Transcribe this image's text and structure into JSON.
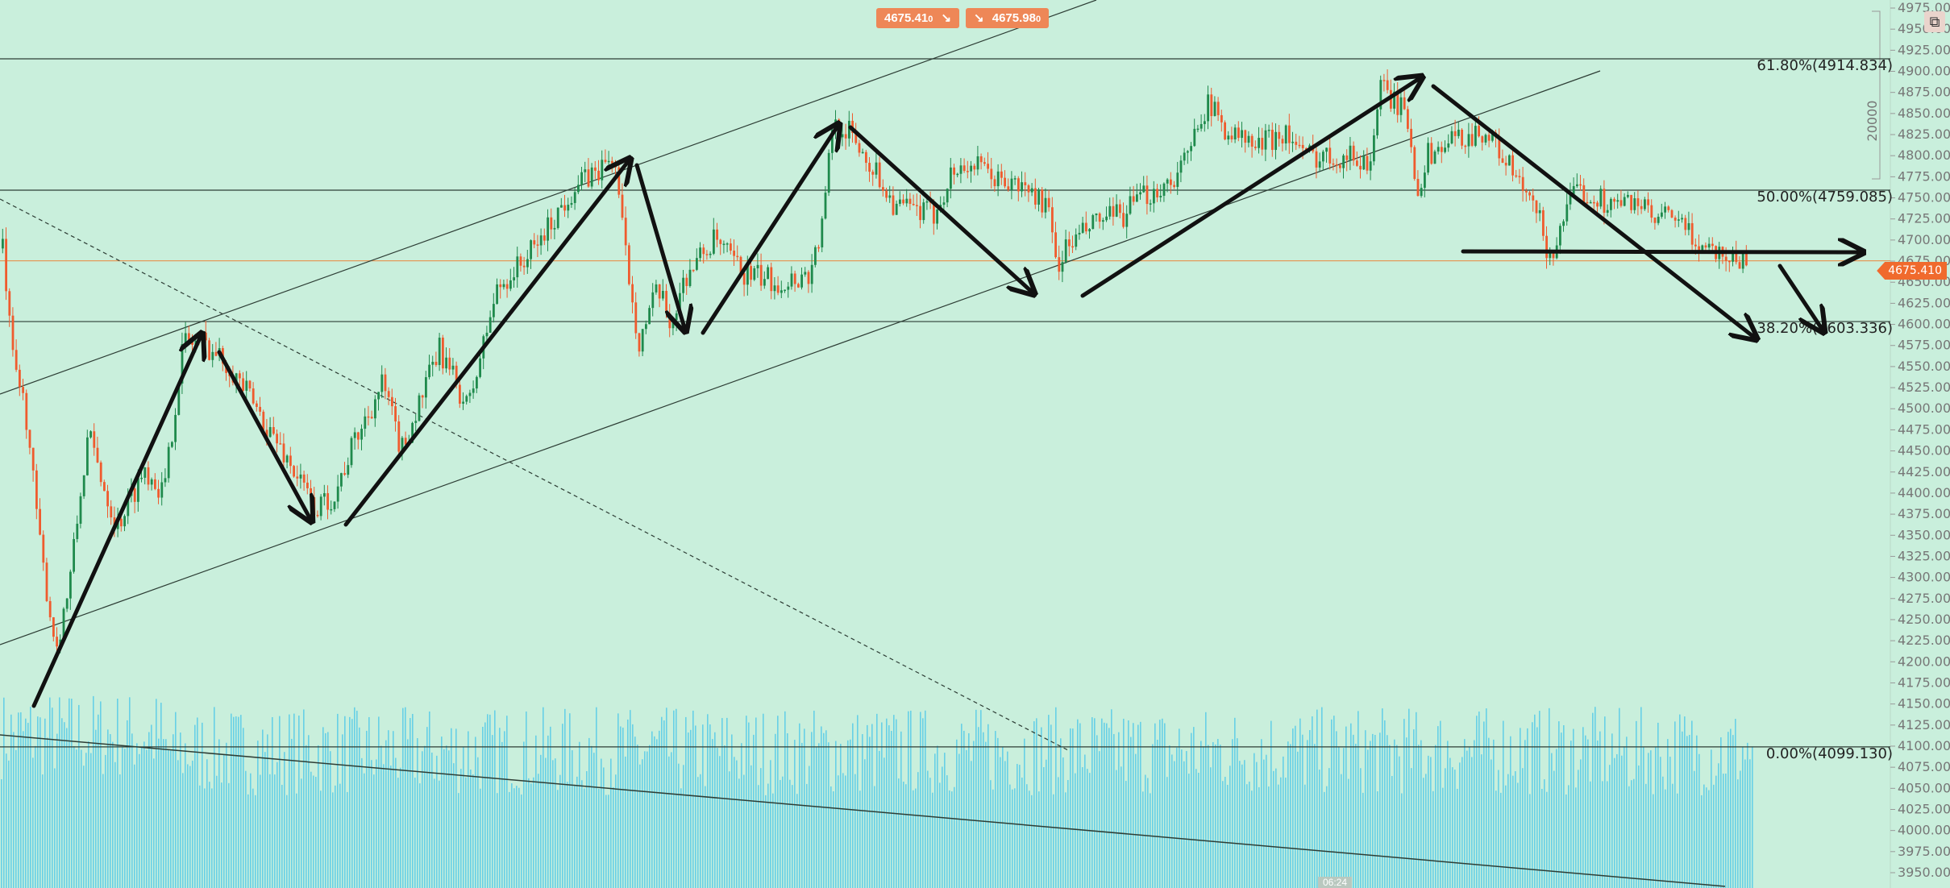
{
  "header": {
    "sell_price": "4675.41",
    "sell_suffix": "0",
    "sell_icon": "arrow-down-right-icon",
    "buy_price": "4675.98",
    "buy_suffix": "0",
    "buy_icon": "arrow-down-right-icon"
  },
  "popout_icon": "popout-icon",
  "current_price_tag": "4675.410",
  "time_tag": "06:24",
  "volume_scale_label": "20000",
  "colors": {
    "background": "#c9efdc",
    "up_candle": "#1f8a4c",
    "down_candle": "#ef5b2e",
    "volume": "#67d0e6",
    "price_line": "#e39a5a",
    "fib_line": "#2d3d35",
    "order_button": "#ee8757",
    "price_tag": "#f06a2d"
  },
  "fib_levels": [
    {
      "label": "61.80%(4914.834)",
      "price": 4914.834
    },
    {
      "label": "50.00%(4759.085)",
      "price": 4759.085
    },
    {
      "label": "38.20%(4603.336)",
      "price": 4603.336
    },
    {
      "label": "0.00%(4099.130)",
      "price": 4099.13
    }
  ],
  "current_price": 4675.41,
  "price_axis": {
    "min": 3950,
    "max": 4975,
    "step": 25,
    "labels": [
      "4975.00",
      "4950.00",
      "4925.00",
      "4900.00",
      "4875.00",
      "4850.00",
      "4825.00",
      "4800.00",
      "4775.00",
      "4750.00",
      "4725.00",
      "4700.00",
      "4675.00",
      "4650.00",
      "4625.00",
      "4600.00",
      "4575.00",
      "4550.00",
      "4525.00",
      "4500.00",
      "4475.00",
      "4450.00",
      "4425.00",
      "4400.00",
      "4375.00",
      "4350.00",
      "4325.00",
      "4300.00",
      "4275.00",
      "4250.00",
      "4225.00",
      "4200.00",
      "4175.00",
      "4150.00",
      "4125.00",
      "4100.00",
      "4075.00",
      "4050.00",
      "4025.00",
      "4000.00",
      "3975.00",
      "3950.00"
    ]
  },
  "chart_data": {
    "type": "candlestick",
    "title": "",
    "xlabel": "",
    "ylabel": "",
    "ylim": [
      3950,
      4975
    ],
    "grid": false,
    "price_path": [
      [
        0,
        4690
      ],
      [
        0.005,
        4560
      ],
      [
        0.012,
        4500
      ],
      [
        0.02,
        4330
      ],
      [
        0.028,
        4215
      ],
      [
        0.035,
        4290
      ],
      [
        0.045,
        4470
      ],
      [
        0.06,
        4360
      ],
      [
        0.075,
        4430
      ],
      [
        0.085,
        4400
      ],
      [
        0.095,
        4580
      ],
      [
        0.105,
        4580
      ],
      [
        0.12,
        4550
      ],
      [
        0.15,
        4440
      ],
      [
        0.165,
        4380
      ],
      [
        0.175,
        4400
      ],
      [
        0.185,
        4460
      ],
      [
        0.2,
        4530
      ],
      [
        0.21,
        4450
      ],
      [
        0.23,
        4570
      ],
      [
        0.245,
        4500
      ],
      [
        0.26,
        4640
      ],
      [
        0.28,
        4690
      ],
      [
        0.3,
        4760
      ],
      [
        0.315,
        4785
      ],
      [
        0.322,
        4800
      ],
      [
        0.327,
        4700
      ],
      [
        0.335,
        4580
      ],
      [
        0.345,
        4640
      ],
      [
        0.352,
        4600
      ],
      [
        0.36,
        4660
      ],
      [
        0.375,
        4700
      ],
      [
        0.39,
        4660
      ],
      [
        0.41,
        4650
      ],
      [
        0.425,
        4660
      ],
      [
        0.432,
        4720
      ],
      [
        0.437,
        4840
      ],
      [
        0.445,
        4830
      ],
      [
        0.46,
        4780
      ],
      [
        0.47,
        4740
      ],
      [
        0.49,
        4730
      ],
      [
        0.5,
        4780
      ],
      [
        0.51,
        4790
      ],
      [
        0.525,
        4770
      ],
      [
        0.54,
        4760
      ],
      [
        0.55,
        4740
      ],
      [
        0.555,
        4670
      ],
      [
        0.56,
        4690
      ],
      [
        0.575,
        4720
      ],
      [
        0.59,
        4730
      ],
      [
        0.6,
        4750
      ],
      [
        0.615,
        4770
      ],
      [
        0.625,
        4800
      ],
      [
        0.63,
        4850
      ],
      [
        0.635,
        4860
      ],
      [
        0.645,
        4830
      ],
      [
        0.66,
        4810
      ],
      [
        0.675,
        4830
      ],
      [
        0.685,
        4800
      ],
      [
        0.71,
        4800
      ],
      [
        0.72,
        4790
      ],
      [
        0.725,
        4880
      ],
      [
        0.735,
        4860
      ],
      [
        0.74,
        4840
      ],
      [
        0.745,
        4760
      ],
      [
        0.75,
        4800
      ],
      [
        0.765,
        4820
      ],
      [
        0.78,
        4830
      ],
      [
        0.79,
        4800
      ],
      [
        0.8,
        4760
      ],
      [
        0.81,
        4720
      ],
      [
        0.815,
        4670
      ],
      [
        0.82,
        4720
      ],
      [
        0.83,
        4760
      ],
      [
        0.85,
        4740
      ],
      [
        0.86,
        4750
      ],
      [
        0.87,
        4720
      ],
      [
        0.88,
        4730
      ],
      [
        0.89,
        4700
      ],
      [
        0.9,
        4690
      ],
      [
        0.91,
        4680
      ],
      [
        0.92,
        4675.41
      ]
    ],
    "overlays": {
      "trend_channel_upper": "solid",
      "trend_channel_lower": "solid",
      "descending_trendline": "dashed",
      "volume_trendline": "solid",
      "arrows": 13
    }
  }
}
